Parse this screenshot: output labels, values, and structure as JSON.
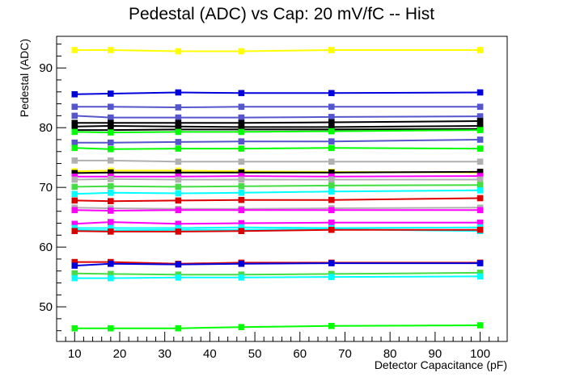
{
  "chart_data": {
    "type": "line",
    "title": "Pedestal (ADC) vs Cap: 20 mV/fC -- Hist",
    "xlabel": "Detector Capacitance (pF)",
    "ylabel": "Pedestal (ADC)",
    "xlim": [
      6,
      106
    ],
    "ylim": [
      44.2,
      95.3
    ],
    "x_ticks": [
      10,
      20,
      30,
      40,
      50,
      60,
      70,
      80,
      90,
      100
    ],
    "y_ticks": [
      50,
      60,
      70,
      80,
      90
    ],
    "grid": false,
    "legend": "none",
    "marker": "square",
    "x": [
      10,
      18,
      33,
      47,
      67,
      100
    ],
    "series": [
      {
        "color": "#ffff00",
        "values": [
          93.0,
          93.0,
          92.8,
          92.8,
          93.0,
          93.0
        ]
      },
      {
        "color": "#0000dd",
        "values": [
          85.6,
          85.7,
          85.9,
          85.8,
          85.8,
          85.9
        ]
      },
      {
        "color": "#5555cc",
        "values": [
          83.5,
          83.5,
          83.4,
          83.5,
          83.5,
          83.5
        ]
      },
      {
        "color": "#5555cc",
        "values": [
          82.0,
          81.7,
          81.7,
          81.7,
          81.8,
          81.9
        ]
      },
      {
        "color": "#000000",
        "values": [
          80.8,
          80.8,
          80.8,
          80.8,
          80.9,
          81.1
        ]
      },
      {
        "color": "#000000",
        "values": [
          80.2,
          80.3,
          80.2,
          80.1,
          80.1,
          80.3
        ]
      },
      {
        "color": "#000000",
        "values": [
          79.6,
          79.6,
          79.7,
          79.7,
          79.7,
          79.8
        ]
      },
      {
        "color": "#00ff00",
        "values": [
          79.3,
          79.2,
          79.3,
          79.3,
          79.4,
          79.6
        ]
      },
      {
        "color": "#5555cc",
        "values": [
          77.5,
          77.5,
          77.6,
          77.7,
          77.7,
          78.0
        ]
      },
      {
        "color": "#00ff00",
        "values": [
          76.6,
          76.4,
          76.5,
          76.5,
          76.6,
          76.5
        ]
      },
      {
        "color": "#b0b0b0",
        "values": [
          74.5,
          74.5,
          74.3,
          74.3,
          74.3,
          74.3
        ]
      },
      {
        "color": "#ffff00",
        "values": [
          72.7,
          72.8,
          72.8,
          72.7,
          72.6,
          72.5
        ]
      },
      {
        "color": "#000000",
        "values": [
          72.4,
          72.5,
          72.5,
          72.5,
          72.5,
          72.6
        ]
      },
      {
        "color": "#ff00ff",
        "values": [
          71.8,
          71.8,
          71.8,
          71.9,
          71.8,
          71.9
        ]
      },
      {
        "color": "#b0b0b0",
        "values": [
          71.3,
          71.4,
          71.3,
          71.3,
          71.3,
          71.3
        ]
      },
      {
        "color": "#44dd44",
        "values": [
          70.1,
          70.2,
          70.1,
          70.2,
          70.3,
          70.4
        ]
      },
      {
        "color": "#00ffff",
        "values": [
          68.9,
          69.1,
          69.0,
          69.1,
          69.3,
          69.5
        ]
      },
      {
        "color": "#dd0000",
        "values": [
          67.8,
          67.7,
          67.8,
          67.9,
          67.9,
          68.2
        ]
      },
      {
        "color": "#b0b0b0",
        "values": [
          66.6,
          66.5,
          66.4,
          66.4,
          66.5,
          66.6
        ]
      },
      {
        "color": "#ff00ff",
        "values": [
          66.2,
          66.1,
          66.2,
          66.2,
          66.2,
          66.2
        ]
      },
      {
        "color": "#ff00ff",
        "values": [
          63.9,
          64.2,
          63.9,
          64.0,
          64.1,
          64.1
        ]
      },
      {
        "color": "#00ffff",
        "values": [
          63.2,
          63.2,
          63.2,
          63.3,
          63.2,
          63.3
        ]
      },
      {
        "color": "#00ffff",
        "values": [
          62.9,
          62.8,
          62.9,
          62.9,
          63.0,
          62.7
        ]
      },
      {
        "color": "#dd0000",
        "values": [
          62.7,
          62.6,
          62.6,
          62.7,
          62.9,
          62.9
        ]
      },
      {
        "color": "#dd0000",
        "values": [
          57.5,
          57.5,
          57.2,
          57.4,
          57.4,
          57.4
        ]
      },
      {
        "color": "#0000dd",
        "values": [
          56.9,
          57.2,
          57.1,
          57.2,
          57.3,
          57.3
        ]
      },
      {
        "color": "#44dd44",
        "values": [
          55.6,
          55.5,
          55.4,
          55.4,
          55.5,
          55.7
        ]
      },
      {
        "color": "#00ffff",
        "values": [
          54.8,
          54.8,
          54.9,
          54.9,
          55.0,
          55.1
        ]
      },
      {
        "color": "#00ff00",
        "values": [
          46.4,
          46.4,
          46.4,
          46.6,
          46.8,
          46.9
        ]
      }
    ]
  }
}
